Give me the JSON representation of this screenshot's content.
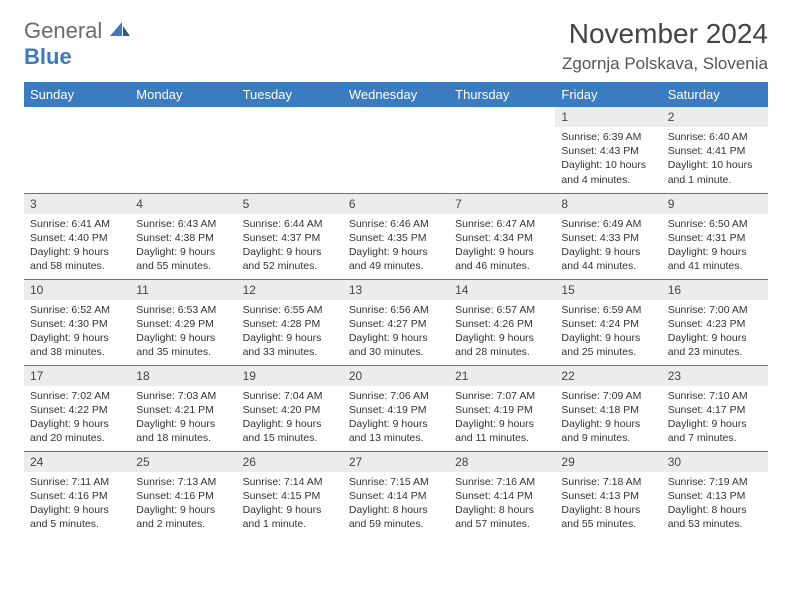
{
  "logo": {
    "general": "General",
    "blue": "Blue"
  },
  "title": "November 2024",
  "location": "Zgornja Polskava, Slovenia",
  "colors": {
    "header_bg": "#3b7bbf",
    "header_text": "#ffffff",
    "daynum_bg": "#ececec",
    "border": "#3b7bbf",
    "text": "#333333"
  },
  "weekdays": [
    "Sunday",
    "Monday",
    "Tuesday",
    "Wednesday",
    "Thursday",
    "Friday",
    "Saturday"
  ],
  "weeks": [
    [
      {
        "n": "",
        "sr": "",
        "ss": "",
        "dl": ""
      },
      {
        "n": "",
        "sr": "",
        "ss": "",
        "dl": ""
      },
      {
        "n": "",
        "sr": "",
        "ss": "",
        "dl": ""
      },
      {
        "n": "",
        "sr": "",
        "ss": "",
        "dl": ""
      },
      {
        "n": "",
        "sr": "",
        "ss": "",
        "dl": ""
      },
      {
        "n": "1",
        "sr": "Sunrise: 6:39 AM",
        "ss": "Sunset: 4:43 PM",
        "dl": "Daylight: 10 hours and 4 minutes."
      },
      {
        "n": "2",
        "sr": "Sunrise: 6:40 AM",
        "ss": "Sunset: 4:41 PM",
        "dl": "Daylight: 10 hours and 1 minute."
      }
    ],
    [
      {
        "n": "3",
        "sr": "Sunrise: 6:41 AM",
        "ss": "Sunset: 4:40 PM",
        "dl": "Daylight: 9 hours and 58 minutes."
      },
      {
        "n": "4",
        "sr": "Sunrise: 6:43 AM",
        "ss": "Sunset: 4:38 PM",
        "dl": "Daylight: 9 hours and 55 minutes."
      },
      {
        "n": "5",
        "sr": "Sunrise: 6:44 AM",
        "ss": "Sunset: 4:37 PM",
        "dl": "Daylight: 9 hours and 52 minutes."
      },
      {
        "n": "6",
        "sr": "Sunrise: 6:46 AM",
        "ss": "Sunset: 4:35 PM",
        "dl": "Daylight: 9 hours and 49 minutes."
      },
      {
        "n": "7",
        "sr": "Sunrise: 6:47 AM",
        "ss": "Sunset: 4:34 PM",
        "dl": "Daylight: 9 hours and 46 minutes."
      },
      {
        "n": "8",
        "sr": "Sunrise: 6:49 AM",
        "ss": "Sunset: 4:33 PM",
        "dl": "Daylight: 9 hours and 44 minutes."
      },
      {
        "n": "9",
        "sr": "Sunrise: 6:50 AM",
        "ss": "Sunset: 4:31 PM",
        "dl": "Daylight: 9 hours and 41 minutes."
      }
    ],
    [
      {
        "n": "10",
        "sr": "Sunrise: 6:52 AM",
        "ss": "Sunset: 4:30 PM",
        "dl": "Daylight: 9 hours and 38 minutes."
      },
      {
        "n": "11",
        "sr": "Sunrise: 6:53 AM",
        "ss": "Sunset: 4:29 PM",
        "dl": "Daylight: 9 hours and 35 minutes."
      },
      {
        "n": "12",
        "sr": "Sunrise: 6:55 AM",
        "ss": "Sunset: 4:28 PM",
        "dl": "Daylight: 9 hours and 33 minutes."
      },
      {
        "n": "13",
        "sr": "Sunrise: 6:56 AM",
        "ss": "Sunset: 4:27 PM",
        "dl": "Daylight: 9 hours and 30 minutes."
      },
      {
        "n": "14",
        "sr": "Sunrise: 6:57 AM",
        "ss": "Sunset: 4:26 PM",
        "dl": "Daylight: 9 hours and 28 minutes."
      },
      {
        "n": "15",
        "sr": "Sunrise: 6:59 AM",
        "ss": "Sunset: 4:24 PM",
        "dl": "Daylight: 9 hours and 25 minutes."
      },
      {
        "n": "16",
        "sr": "Sunrise: 7:00 AM",
        "ss": "Sunset: 4:23 PM",
        "dl": "Daylight: 9 hours and 23 minutes."
      }
    ],
    [
      {
        "n": "17",
        "sr": "Sunrise: 7:02 AM",
        "ss": "Sunset: 4:22 PM",
        "dl": "Daylight: 9 hours and 20 minutes."
      },
      {
        "n": "18",
        "sr": "Sunrise: 7:03 AM",
        "ss": "Sunset: 4:21 PM",
        "dl": "Daylight: 9 hours and 18 minutes."
      },
      {
        "n": "19",
        "sr": "Sunrise: 7:04 AM",
        "ss": "Sunset: 4:20 PM",
        "dl": "Daylight: 9 hours and 15 minutes."
      },
      {
        "n": "20",
        "sr": "Sunrise: 7:06 AM",
        "ss": "Sunset: 4:19 PM",
        "dl": "Daylight: 9 hours and 13 minutes."
      },
      {
        "n": "21",
        "sr": "Sunrise: 7:07 AM",
        "ss": "Sunset: 4:19 PM",
        "dl": "Daylight: 9 hours and 11 minutes."
      },
      {
        "n": "22",
        "sr": "Sunrise: 7:09 AM",
        "ss": "Sunset: 4:18 PM",
        "dl": "Daylight: 9 hours and 9 minutes."
      },
      {
        "n": "23",
        "sr": "Sunrise: 7:10 AM",
        "ss": "Sunset: 4:17 PM",
        "dl": "Daylight: 9 hours and 7 minutes."
      }
    ],
    [
      {
        "n": "24",
        "sr": "Sunrise: 7:11 AM",
        "ss": "Sunset: 4:16 PM",
        "dl": "Daylight: 9 hours and 5 minutes."
      },
      {
        "n": "25",
        "sr": "Sunrise: 7:13 AM",
        "ss": "Sunset: 4:16 PM",
        "dl": "Daylight: 9 hours and 2 minutes."
      },
      {
        "n": "26",
        "sr": "Sunrise: 7:14 AM",
        "ss": "Sunset: 4:15 PM",
        "dl": "Daylight: 9 hours and 1 minute."
      },
      {
        "n": "27",
        "sr": "Sunrise: 7:15 AM",
        "ss": "Sunset: 4:14 PM",
        "dl": "Daylight: 8 hours and 59 minutes."
      },
      {
        "n": "28",
        "sr": "Sunrise: 7:16 AM",
        "ss": "Sunset: 4:14 PM",
        "dl": "Daylight: 8 hours and 57 minutes."
      },
      {
        "n": "29",
        "sr": "Sunrise: 7:18 AM",
        "ss": "Sunset: 4:13 PM",
        "dl": "Daylight: 8 hours and 55 minutes."
      },
      {
        "n": "30",
        "sr": "Sunrise: 7:19 AM",
        "ss": "Sunset: 4:13 PM",
        "dl": "Daylight: 8 hours and 53 minutes."
      }
    ]
  ]
}
